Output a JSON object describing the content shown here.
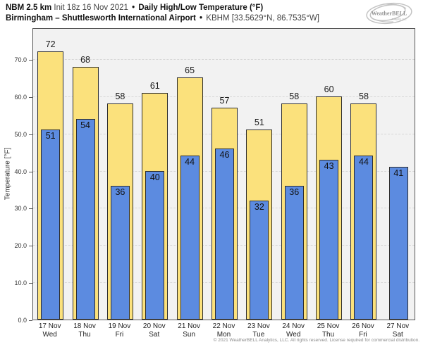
{
  "header": {
    "model": "NBM 2.5 km",
    "init": "Init 18z 16 Nov 2021",
    "separator": "•",
    "product": "Daily High/Low Temperature (°F)",
    "station": "Birmingham – Shuttlesworth International Airport",
    "station_id": "KBHM [33.5629°N, 86.7535°W]"
  },
  "logo": {
    "brand": "WeatherBELL",
    "sub": "Analytics LLC"
  },
  "footer": {
    "copyright": "© 2021 WeatherBELL Analytics, LLC. All rights reserved. License required for commercial distribution."
  },
  "chart_data": {
    "type": "bar",
    "title": "Daily High/Low Temperature (°F)",
    "xlabel": "",
    "ylabel": "Temperature [°F]",
    "ylim": [
      0,
      78.5
    ],
    "yticks": [
      0,
      10,
      20,
      30,
      40,
      50,
      60,
      70
    ],
    "grid": true,
    "legend_position": "none",
    "categories": [
      {
        "date": "17 Nov",
        "day": "Wed"
      },
      {
        "date": "18 Nov",
        "day": "Thu"
      },
      {
        "date": "19 Nov",
        "day": "Fri"
      },
      {
        "date": "20 Nov",
        "day": "Sat"
      },
      {
        "date": "21 Nov",
        "day": "Sun"
      },
      {
        "date": "22 Nov",
        "day": "Mon"
      },
      {
        "date": "23 Nov",
        "day": "Tue"
      },
      {
        "date": "24 Nov",
        "day": "Wed"
      },
      {
        "date": "25 Nov",
        "day": "Thu"
      },
      {
        "date": "26 Nov",
        "day": "Fri"
      },
      {
        "date": "27 Nov",
        "day": "Sat"
      }
    ],
    "series": [
      {
        "name": "High",
        "color": "#FBE17C",
        "values": [
          72,
          68,
          58,
          61,
          65,
          57,
          51,
          58,
          60,
          58,
          null
        ]
      },
      {
        "name": "Low",
        "color": "#5C8BE0",
        "values": [
          51,
          54,
          36,
          40,
          44,
          46,
          32,
          36,
          43,
          44,
          41
        ]
      }
    ],
    "colors": {
      "plot_background": "#F2F2F2",
      "gridline": "#D7D7D7",
      "bar_border": "#2E2E2E",
      "high_fill": "#FBE17C",
      "low_fill": "#5C8BE0"
    }
  }
}
